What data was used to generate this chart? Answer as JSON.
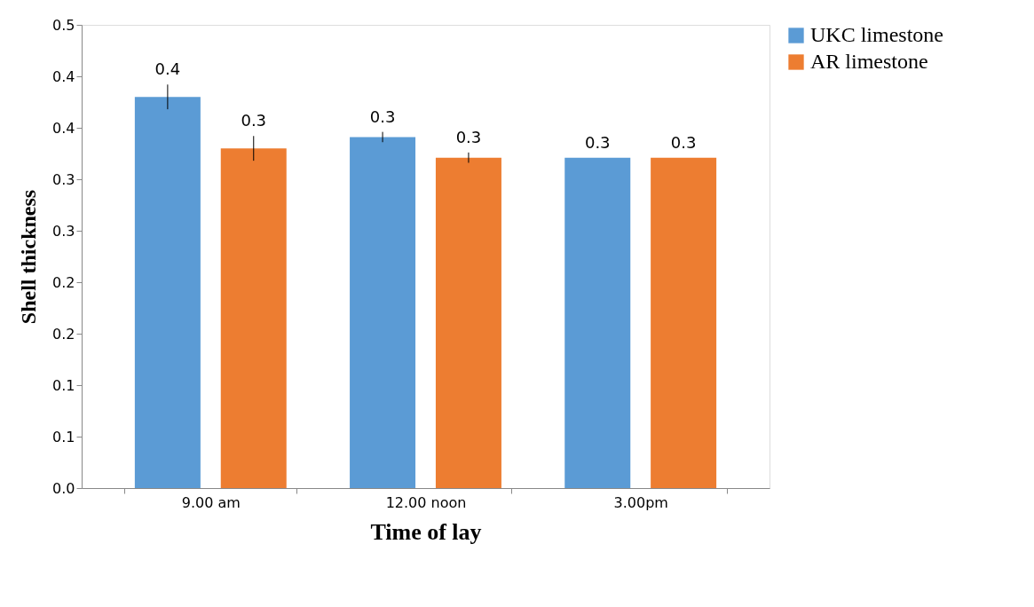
{
  "chart_data": {
    "type": "bar",
    "xlabel": "Time of lay",
    "ylabel": "Shell thickness",
    "categories": [
      "9.00 am",
      "12.00 noon",
      "3.00pm"
    ],
    "series": [
      {
        "name": "UKC  limestone",
        "color": "#5b9bd5",
        "values": [
          0.38,
          0.341,
          0.321
        ],
        "errors": [
          0.012,
          0.005,
          null
        ],
        "value_labels": [
          "0.4",
          "0.3",
          "0.3"
        ]
      },
      {
        "name": "AR limestone",
        "color": "#ed7d31",
        "values": [
          0.33,
          0.321,
          0.321
        ],
        "errors": [
          0.012,
          0.005,
          null
        ],
        "value_labels": [
          "0.3",
          "0.3",
          "0.3"
        ]
      }
    ],
    "ylim": [
      0,
      0.45
    ],
    "yticks": [
      {
        "value": 0,
        "label": "0.0"
      },
      {
        "value": 0.05,
        "label": "0.1"
      },
      0.1,
      {
        "value": 0.15,
        "label": "0.2"
      },
      0.2,
      {
        "value": 0.25,
        "label": "0.3"
      },
      0.3,
      {
        "value": 0.35,
        "label": "0.4"
      },
      0.4,
      {
        "value": 0.45,
        "label": "0.5"
      }
    ],
    "grid": false,
    "legend": "right"
  }
}
